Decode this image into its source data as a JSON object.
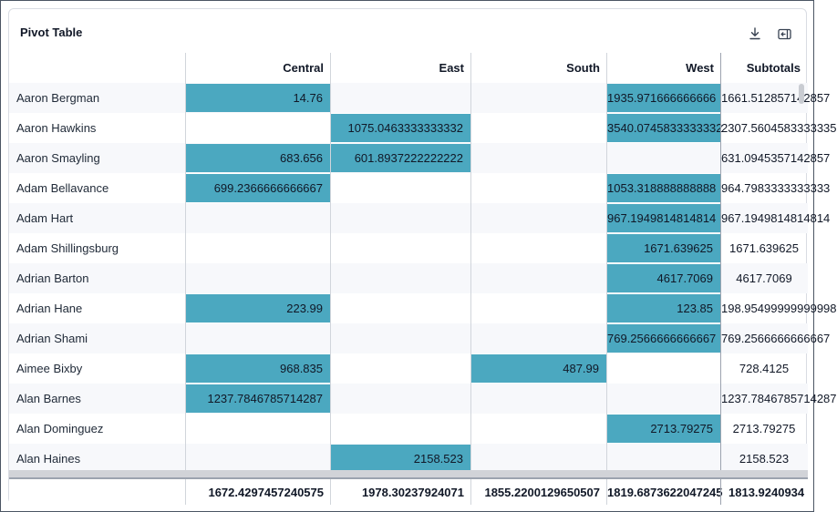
{
  "card": {
    "title": "Pivot Table",
    "download_icon": "download-icon",
    "expand_icon": "expand-panel-icon"
  },
  "colors": {
    "filled_cell": "#4ba8c0",
    "alt_row": "#f7f8fb"
  },
  "table": {
    "columns": [
      "Central",
      "East",
      "South",
      "West",
      "Subtotals"
    ],
    "rows": [
      {
        "label": "Aaron Bergman",
        "values": [
          "14.76",
          "",
          "",
          "1935.971666666666",
          "1661.512857142857"
        ]
      },
      {
        "label": "Aaron Hawkins",
        "values": [
          "",
          "1075.0463333333332",
          "",
          "3540.0745833333332",
          "2307.5604583333335"
        ]
      },
      {
        "label": "Aaron Smayling",
        "values": [
          "683.656",
          "601.8937222222222",
          "",
          "",
          "631.0945357142857"
        ]
      },
      {
        "label": "Adam Bellavance",
        "values": [
          "699.2366666666667",
          "",
          "",
          "1053.318888888888",
          "964.7983333333333"
        ]
      },
      {
        "label": "Adam Hart",
        "values": [
          "",
          "",
          "",
          "967.1949814814814",
          "967.1949814814814"
        ]
      },
      {
        "label": "Adam Shillingsburg",
        "values": [
          "",
          "",
          "",
          "1671.639625",
          "1671.639625"
        ]
      },
      {
        "label": "Adrian Barton",
        "values": [
          "",
          "",
          "",
          "4617.7069",
          "4617.7069"
        ]
      },
      {
        "label": "Adrian Hane",
        "values": [
          "223.99",
          "",
          "",
          "123.85",
          "198.95499999999998"
        ]
      },
      {
        "label": "Adrian Shami",
        "values": [
          "",
          "",
          "",
          "769.2566666666667",
          "769.2566666666667"
        ]
      },
      {
        "label": "Aimee Bixby",
        "values": [
          "968.835",
          "",
          "487.99",
          "",
          "728.4125"
        ]
      },
      {
        "label": "Alan Barnes",
        "values": [
          "1237.7846785714287",
          "",
          "",
          "",
          "1237.7846785714287"
        ]
      },
      {
        "label": "Alan Dominguez",
        "values": [
          "",
          "",
          "",
          "2713.79275",
          "2713.79275"
        ]
      },
      {
        "label": "Alan Haines",
        "values": [
          "",
          "2158.523",
          "",
          "",
          "2158.523"
        ]
      }
    ],
    "totals": [
      "1672.4297457240575",
      "1978.30237924071",
      "1855.2200129650507",
      "1819.6873622047245",
      "1813.9240934"
    ]
  }
}
